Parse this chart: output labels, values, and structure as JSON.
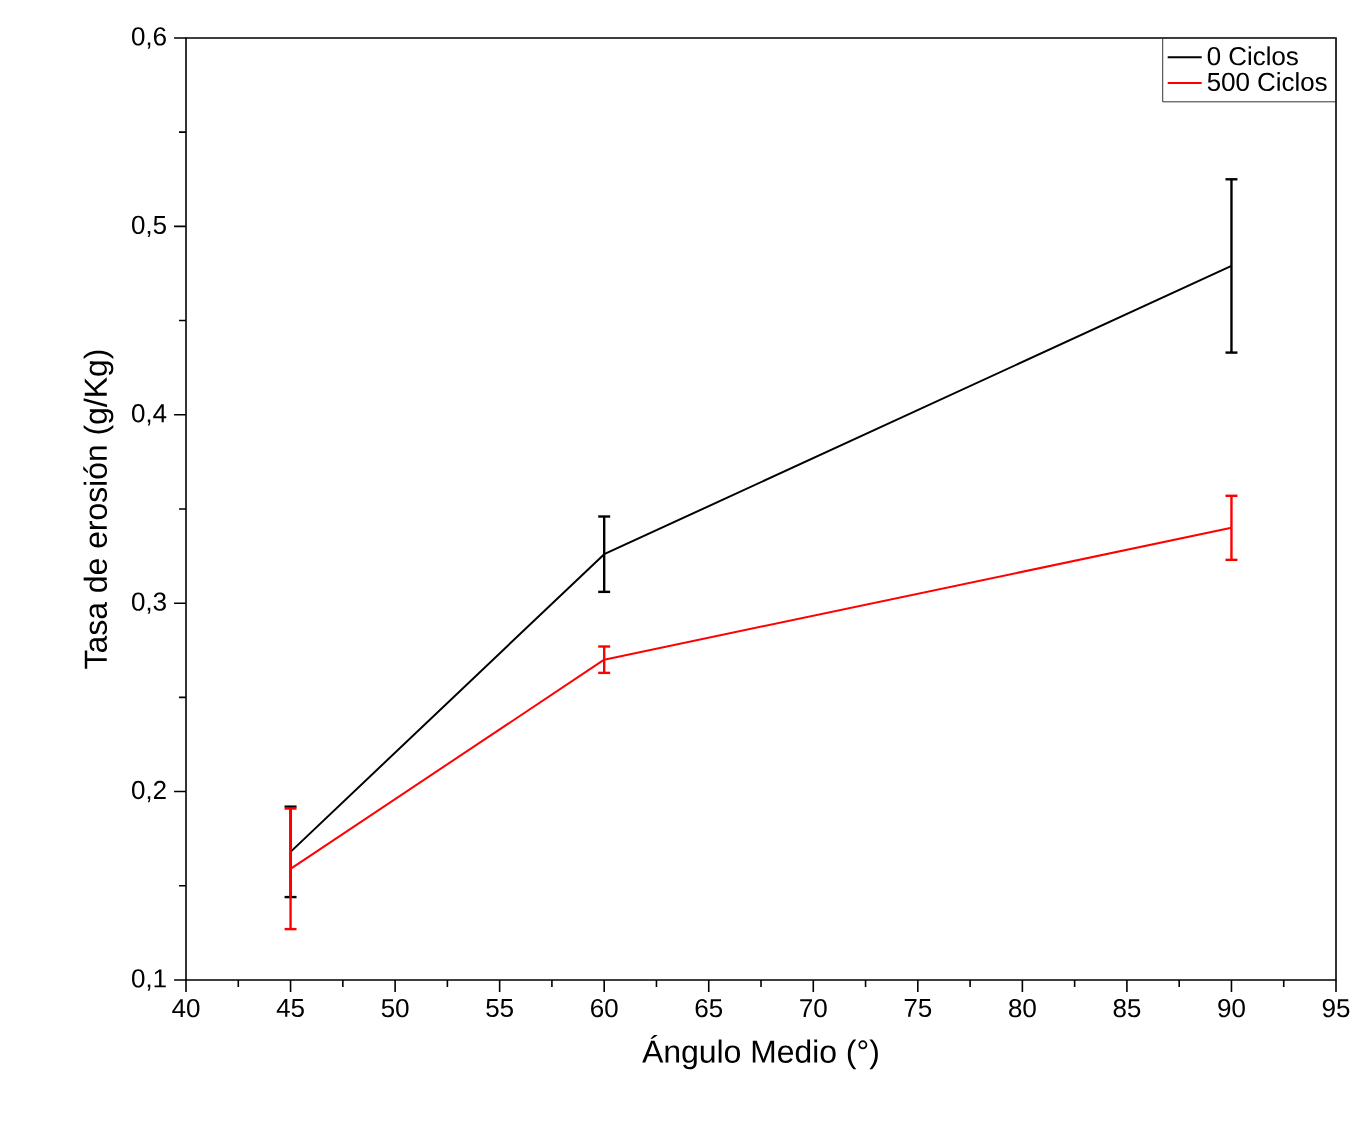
{
  "chart_data": {
    "type": "line",
    "xlabel": "Ángulo Medio (°)",
    "ylabel": "Tasa de erosión (g/Kg)",
    "x": [
      45,
      60,
      90
    ],
    "series": [
      {
        "name": "0 Ciclos",
        "color": "#000000",
        "values": [
          0.168,
          0.326,
          0.479
        ],
        "errors": [
          0.024,
          0.02,
          0.046
        ]
      },
      {
        "name": "500 Ciclos",
        "color": "#ff0000",
        "values": [
          0.159,
          0.27,
          0.34
        ],
        "errors": [
          0.032,
          0.007,
          0.017
        ]
      }
    ],
    "xlim": [
      40,
      95
    ],
    "xticks": [
      40,
      45,
      50,
      55,
      60,
      65,
      70,
      75,
      80,
      85,
      90,
      95
    ],
    "ylim": [
      0.1,
      0.6
    ],
    "yticks": [
      {
        "value": 0.1,
        "label": "0,1"
      },
      {
        "value": 0.2,
        "label": "0,2"
      },
      {
        "value": 0.3,
        "label": "0,3"
      },
      {
        "value": 0.4,
        "label": "0,4"
      },
      {
        "value": 0.5,
        "label": "0,5"
      },
      {
        "value": 0.6,
        "label": "0,6"
      }
    ],
    "grid": false,
    "legend": "top right",
    "marker": "none",
    "line_style": "solid"
  }
}
